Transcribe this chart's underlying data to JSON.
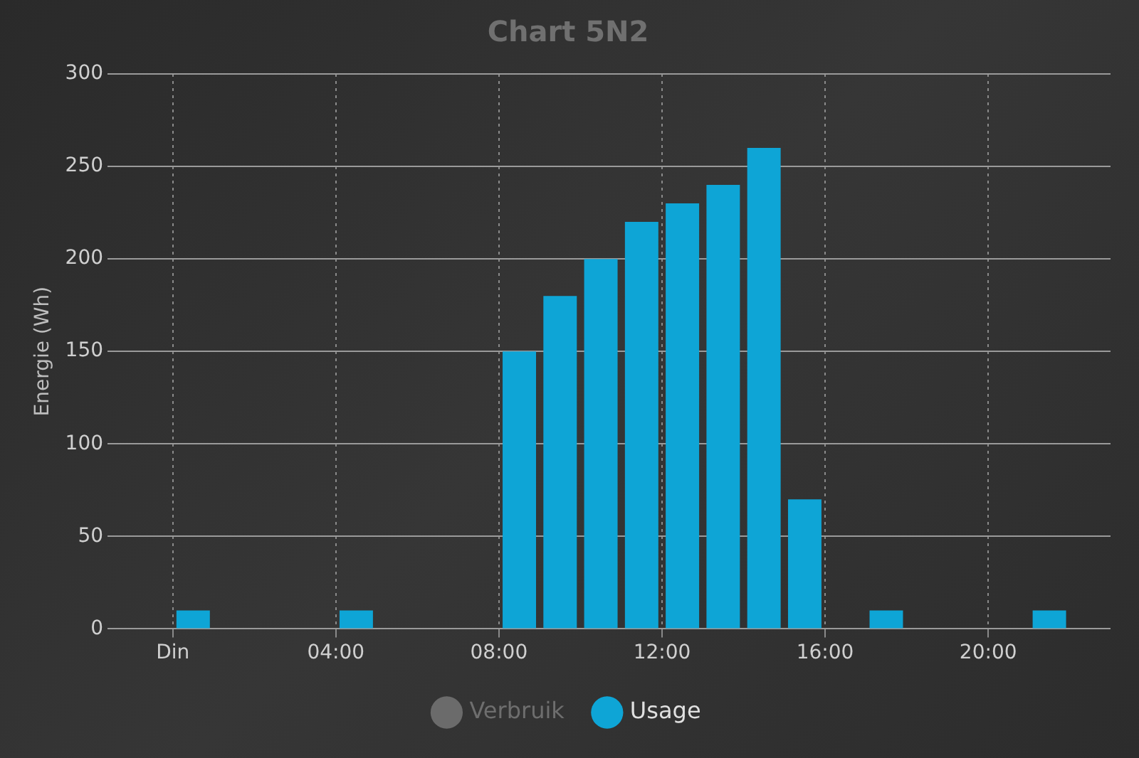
{
  "chart_data": {
    "type": "bar",
    "title": "Chart 5N2",
    "ylabel": "Energie (Wh)",
    "x": [
      0.5,
      4.5,
      8.5,
      9.5,
      10.5,
      11.5,
      12.5,
      13.5,
      14.5,
      15.5,
      17.5,
      21.5
    ],
    "series": [
      {
        "name": "Verbruik",
        "color": "#6b6b6b",
        "values": [
          null,
          null,
          null,
          null,
          null,
          null,
          null,
          null,
          null,
          null,
          null,
          null
        ]
      },
      {
        "name": "Usage",
        "color": "#0ea5d6",
        "values": [
          10,
          10,
          150,
          180,
          200,
          220,
          230,
          240,
          260,
          70,
          10,
          10
        ]
      }
    ],
    "xlim": [
      -1.6,
      23
    ],
    "xticks": [
      {
        "value": 0,
        "label": "Din"
      },
      {
        "value": 4,
        "label": "04:00"
      },
      {
        "value": 8,
        "label": "08:00"
      },
      {
        "value": 12,
        "label": "12:00"
      },
      {
        "value": 16,
        "label": "16:00"
      },
      {
        "value": 20,
        "label": "20:00"
      }
    ],
    "ylim": [
      0,
      300
    ],
    "yticks": [
      0,
      50,
      100,
      150,
      200,
      250,
      300
    ],
    "grid": true,
    "legend": "bottom"
  }
}
